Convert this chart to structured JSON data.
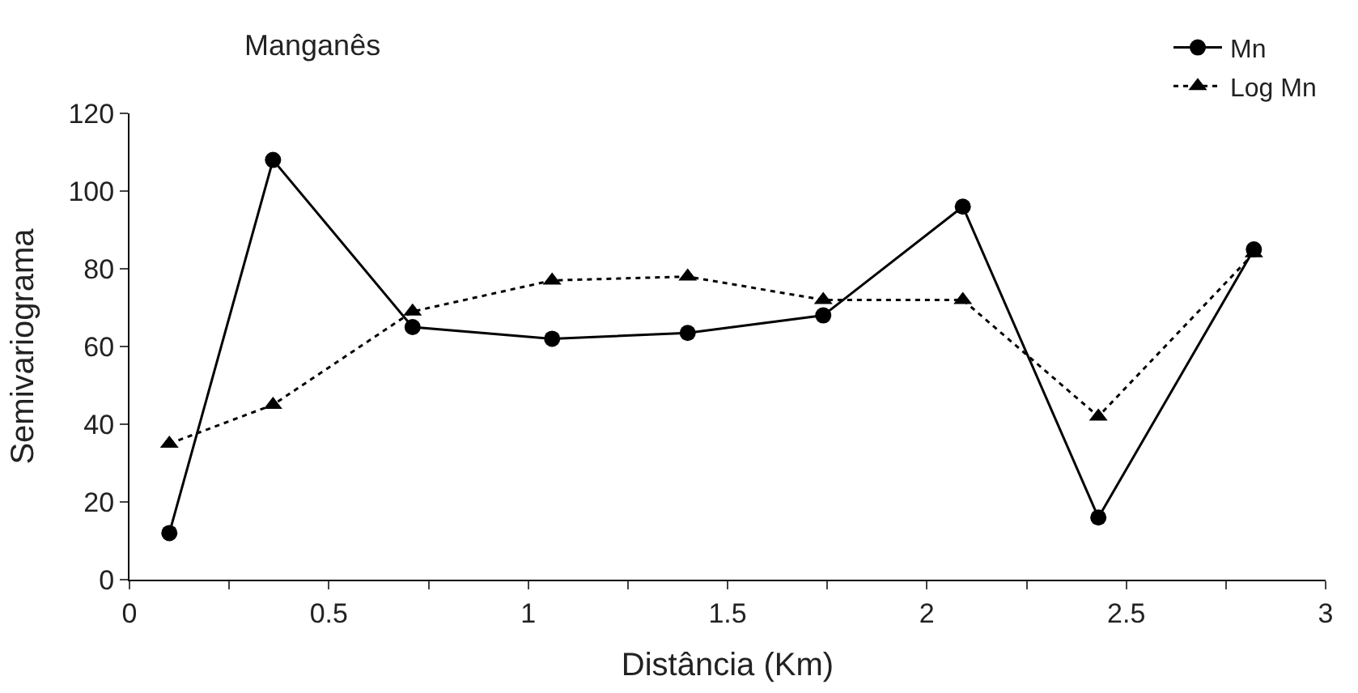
{
  "chart_data": {
    "type": "line",
    "title": "Manganês",
    "xlabel": "Distância (Km)",
    "ylabel": "Semivariograma",
    "xlim": [
      0,
      3
    ],
    "ylim": [
      0,
      120
    ],
    "xticks": [
      0,
      {
        "value": 0.25,
        "label": null
      },
      0.5,
      {
        "value": 0.75,
        "label": null
      },
      1,
      {
        "value": 1.25,
        "label": null
      },
      1.5,
      {
        "value": 1.75,
        "label": null
      },
      2,
      {
        "value": 2.25,
        "label": null
      },
      2.5,
      {
        "value": 2.75,
        "label": null
      },
      3
    ],
    "yticks": [
      0,
      20,
      40,
      60,
      80,
      100,
      120
    ],
    "x": [
      0.1,
      0.36,
      0.71,
      1.06,
      1.4,
      1.74,
      2.09,
      2.43,
      2.82
    ],
    "series": [
      {
        "name": "Mn",
        "color": "#000000",
        "marker": "circle",
        "line_style": "solid",
        "values": [
          12,
          108,
          65,
          62,
          63.5,
          68,
          96,
          16,
          85
        ]
      },
      {
        "name": "Log Mn",
        "color": "#000000",
        "marker": "triangle",
        "line_style": "dotted",
        "values": [
          35,
          45,
          69,
          77,
          78,
          72,
          72,
          42,
          84
        ]
      }
    ],
    "legend": "top right"
  }
}
